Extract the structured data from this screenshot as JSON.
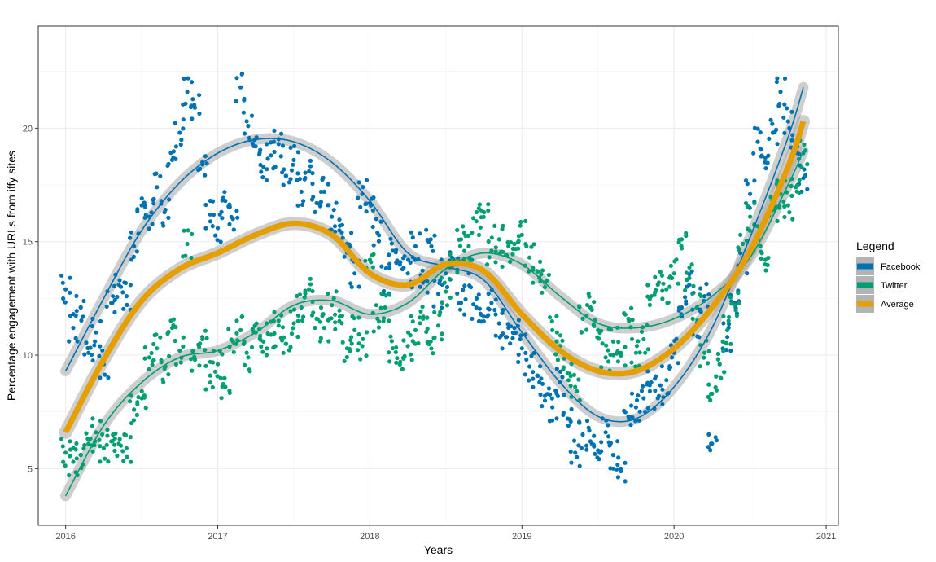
{
  "chart_data": {
    "type": "scatter",
    "title": "",
    "xlabel": "Years",
    "ylabel": "Percentage engagement with URLs from iffy sites",
    "xlim": [
      2015.82,
      2021.08
    ],
    "ylim": [
      2.5,
      24.5
    ],
    "x_ticks": [
      2016,
      2017,
      2018,
      2019,
      2020,
      2021
    ],
    "y_ticks": [
      5,
      10,
      15,
      20
    ],
    "grid": true,
    "legend": {
      "title": "Legend",
      "position": "right",
      "entries": [
        {
          "label": "Facebook",
          "color": "#0072b2"
        },
        {
          "label": "Twitter",
          "color": "#009e73"
        },
        {
          "label": "Average",
          "color": "#e69f00"
        }
      ]
    },
    "series": [
      {
        "name": "Facebook",
        "color": "#0072b2",
        "kind": "points-with-smooth",
        "trend_x": [
          2016.0,
          2016.25,
          2016.5,
          2016.75,
          2017.0,
          2017.25,
          2017.5,
          2017.75,
          2018.0,
          2018.25,
          2018.5,
          2018.75,
          2019.0,
          2019.25,
          2019.5,
          2019.75,
          2020.0,
          2020.25,
          2020.5,
          2020.75,
          2020.85
        ],
        "trend_y": [
          9.3,
          12.5,
          15.5,
          17.6,
          18.9,
          19.5,
          19.4,
          18.5,
          16.8,
          14.5,
          13.9,
          13.3,
          11.0,
          8.8,
          7.3,
          7.2,
          8.6,
          11.2,
          15.2,
          19.6,
          21.8
        ],
        "points_x": [
          2016.0,
          2016.05,
          2016.1,
          2016.15,
          2016.2,
          2016.25,
          2016.3,
          2016.35,
          2016.4,
          2016.45,
          2016.5,
          2016.55,
          2016.6,
          2016.65,
          2016.7,
          2016.75,
          2016.8,
          2016.85,
          2016.9,
          2016.95,
          2017.0,
          2017.05,
          2017.1,
          2017.15,
          2017.2,
          2017.25,
          2017.3,
          2017.35,
          2017.4,
          2017.45,
          2017.5,
          2017.55,
          2017.6,
          2017.65,
          2017.7,
          2017.75,
          2017.8,
          2017.85,
          2017.9,
          2017.95,
          2018.0,
          2018.05,
          2018.1,
          2018.15,
          2018.2,
          2018.25,
          2018.3,
          2018.35,
          2018.4,
          2018.45,
          2018.5,
          2018.55,
          2018.6,
          2018.65,
          2018.7,
          2018.75,
          2018.8,
          2018.85,
          2018.9,
          2018.95,
          2019.0,
          2019.05,
          2019.1,
          2019.15,
          2019.2,
          2019.25,
          2019.3,
          2019.35,
          2019.4,
          2019.45,
          2019.5,
          2019.55,
          2019.6,
          2019.65,
          2019.7,
          2019.75,
          2019.8,
          2019.85,
          2019.9,
          2019.95,
          2020.0,
          2020.05,
          2020.1,
          2020.15,
          2020.2,
          2020.25,
          2020.3,
          2020.35,
          2020.4,
          2020.45,
          2020.5,
          2020.55,
          2020.6,
          2020.65,
          2020.7,
          2020.75,
          2020.8,
          2020.85
        ],
        "points_y": [
          12.9,
          11.2,
          12.1,
          10.1,
          11.0,
          9.6,
          12.3,
          13.1,
          12.6,
          14.8,
          16.6,
          16.1,
          17.4,
          16.3,
          18.6,
          19.8,
          21.6,
          20.9,
          18.4,
          16.2,
          15.6,
          16.8,
          16.0,
          21.8,
          20.1,
          19.2,
          18.3,
          18.8,
          19.3,
          17.9,
          18.6,
          17.2,
          18.1,
          16.7,
          17.2,
          16.1,
          15.5,
          14.9,
          13.6,
          17.1,
          16.7,
          15.4,
          13.3,
          14.6,
          14.1,
          13.6,
          14.8,
          13.2,
          15.1,
          12.7,
          13.6,
          14.2,
          12.3,
          13.6,
          12.1,
          11.7,
          12.3,
          11.4,
          10.8,
          11.2,
          10.3,
          9.5,
          9.1,
          8.2,
          7.7,
          8.8,
          7.2,
          5.7,
          6.5,
          6.2,
          5.8,
          6.6,
          5.6,
          5.0,
          7.3,
          7.7,
          8.1,
          8.8,
          8.2,
          8.9,
          10.1,
          12.1,
          13.1,
          11.4,
          12.6,
          6.1,
          9.6,
          10.8,
          12.3,
          14.1,
          17.1,
          19.4,
          18.7,
          19.8,
          21.6,
          20.3,
          19.1,
          17.8
        ]
      },
      {
        "name": "Twitter",
        "color": "#009e73",
        "kind": "points-with-smooth",
        "trend_x": [
          2016.0,
          2016.25,
          2016.5,
          2016.75,
          2017.0,
          2017.25,
          2017.5,
          2017.75,
          2018.0,
          2018.25,
          2018.5,
          2018.75,
          2019.0,
          2019.25,
          2019.5,
          2019.75,
          2020.0,
          2020.25,
          2020.5,
          2020.75,
          2020.85
        ],
        "trend_y": [
          3.8,
          6.9,
          8.8,
          9.9,
          10.2,
          11.0,
          12.2,
          12.4,
          11.8,
          12.3,
          13.8,
          14.5,
          14.0,
          12.6,
          11.4,
          11.2,
          11.6,
          12.6,
          14.3,
          17.5,
          19.0
        ],
        "points_x": [
          2016.0,
          2016.05,
          2016.1,
          2016.15,
          2016.2,
          2016.25,
          2016.3,
          2016.35,
          2016.4,
          2016.45,
          2016.5,
          2016.55,
          2016.6,
          2016.65,
          2016.7,
          2016.75,
          2016.8,
          2016.85,
          2016.9,
          2016.95,
          2017.0,
          2017.05,
          2017.1,
          2017.15,
          2017.2,
          2017.25,
          2017.3,
          2017.35,
          2017.4,
          2017.45,
          2017.5,
          2017.55,
          2017.6,
          2017.65,
          2017.7,
          2017.75,
          2017.8,
          2017.85,
          2017.9,
          2017.95,
          2018.0,
          2018.05,
          2018.1,
          2018.15,
          2018.2,
          2018.25,
          2018.3,
          2018.35,
          2018.4,
          2018.45,
          2018.5,
          2018.55,
          2018.6,
          2018.65,
          2018.7,
          2018.75,
          2018.8,
          2018.85,
          2018.9,
          2018.95,
          2019.0,
          2019.05,
          2019.1,
          2019.15,
          2019.2,
          2019.25,
          2019.3,
          2019.35,
          2019.4,
          2019.45,
          2019.5,
          2019.55,
          2019.6,
          2019.65,
          2019.7,
          2019.75,
          2019.8,
          2019.85,
          2019.9,
          2019.95,
          2020.0,
          2020.05,
          2020.1,
          2020.15,
          2020.2,
          2020.25,
          2020.3,
          2020.35,
          2020.4,
          2020.45,
          2020.5,
          2020.55,
          2020.6,
          2020.65,
          2020.7,
          2020.75,
          2020.8,
          2020.85
        ],
        "points_y": [
          5.7,
          5.3,
          5.6,
          6.1,
          6.6,
          5.9,
          6.2,
          6.1,
          5.9,
          7.6,
          8.1,
          9.9,
          10.3,
          9.4,
          11.2,
          10.2,
          14.9,
          9.8,
          10.7,
          9.1,
          9.6,
          8.6,
          10.6,
          11.1,
          9.9,
          11.0,
          10.6,
          10.9,
          11.3,
          10.5,
          11.4,
          12.1,
          12.9,
          11.6,
          11.2,
          12.2,
          11.5,
          10.3,
          11.1,
          10.4,
          14.2,
          11.6,
          12.1,
          10.3,
          9.7,
          10.4,
          11.1,
          11.6,
          10.6,
          11.3,
          12.8,
          14.1,
          15.1,
          14.8,
          15.9,
          16.3,
          14.6,
          15.1,
          14.4,
          14.9,
          15.3,
          14.3,
          13.7,
          13.2,
          11.1,
          10.4,
          9.2,
          8.6,
          11.6,
          12.1,
          11.1,
          9.9,
          10.6,
          10.1,
          11.6,
          10.1,
          10.7,
          12.6,
          13.2,
          12.9,
          13.6,
          15.1,
          13.4,
          12.1,
          10.1,
          8.3,
          9.6,
          11.1,
          12.2,
          14.9,
          16.1,
          15.1,
          14.2,
          16.4,
          17.1,
          16.6,
          17.4,
          18.9
        ]
      },
      {
        "name": "Average",
        "color": "#e69f00",
        "kind": "smooth",
        "trend_x": [
          2016.0,
          2016.25,
          2016.5,
          2016.75,
          2017.0,
          2017.25,
          2017.5,
          2017.75,
          2018.0,
          2018.25,
          2018.5,
          2018.75,
          2019.0,
          2019.25,
          2019.5,
          2019.75,
          2020.0,
          2020.25,
          2020.5,
          2020.75,
          2020.85
        ],
        "trend_y": [
          6.6,
          9.8,
          12.4,
          13.8,
          14.5,
          15.3,
          15.8,
          15.3,
          13.6,
          13.1,
          14.0,
          13.7,
          11.8,
          10.2,
          9.3,
          9.3,
          10.3,
          12.1,
          14.6,
          18.3,
          20.3
        ]
      }
    ]
  }
}
